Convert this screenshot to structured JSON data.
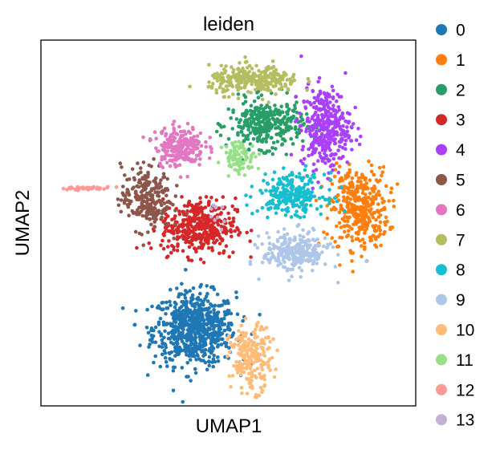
{
  "chart_data": {
    "type": "scatter",
    "title": "leiden",
    "xlabel": "UMAP1",
    "ylabel": "UMAP2",
    "xticks": false,
    "yticks": false,
    "grid": false,
    "legend_position": "right",
    "xlim": [
      0,
      100
    ],
    "ylim": [
      0,
      100
    ],
    "series": [
      {
        "name": "0",
        "color": "#1f77b4",
        "points": 700,
        "center": [
          41,
          21
        ],
        "spread": [
          10,
          9
        ]
      },
      {
        "name": "1",
        "color": "#ff7f0e",
        "points": 380,
        "center": [
          85,
          54
        ],
        "spread": [
          7,
          10
        ]
      },
      {
        "name": "2",
        "color": "#279e68",
        "points": 330,
        "center": [
          60,
          77
        ],
        "spread": [
          9,
          6
        ]
      },
      {
        "name": "3",
        "color": "#d62728",
        "points": 400,
        "center": [
          42,
          49
        ],
        "spread": [
          9,
          7
        ]
      },
      {
        "name": "4",
        "color": "#aa40fc",
        "points": 360,
        "center": [
          76,
          76
        ],
        "spread": [
          6,
          10
        ]
      },
      {
        "name": "5",
        "color": "#8c564b",
        "points": 240,
        "center": [
          28,
          57
        ],
        "spread": [
          6,
          8
        ]
      },
      {
        "name": "6",
        "color": "#e377c2",
        "points": 230,
        "center": [
          37,
          71
        ],
        "spread": [
          6,
          5
        ]
      },
      {
        "name": "7",
        "color": "#b5bd61",
        "points": 280,
        "center": [
          57,
          89
        ],
        "spread": [
          11,
          3.5
        ]
      },
      {
        "name": "8",
        "color": "#17becf",
        "points": 250,
        "center": [
          67,
          58
        ],
        "spread": [
          8,
          5
        ]
      },
      {
        "name": "9",
        "color": "#aec7e8",
        "points": 260,
        "center": [
          68,
          42
        ],
        "spread": [
          8,
          5
        ]
      },
      {
        "name": "10",
        "color": "#ffbb78",
        "points": 220,
        "center": [
          56,
          13
        ],
        "spread": [
          5,
          8
        ]
      },
      {
        "name": "11",
        "color": "#98df8a",
        "points": 90,
        "center": [
          53,
          68
        ],
        "spread": [
          4,
          4
        ]
      },
      {
        "name": "12",
        "color": "#ff9896",
        "points": 35,
        "center": [
          12,
          59.5
        ],
        "spread": [
          6,
          0.4
        ]
      },
      {
        "name": "13",
        "color": "#c5b0d5",
        "points": 10,
        "center": [
          47,
          52
        ],
        "spread": [
          3,
          3
        ]
      }
    ]
  }
}
